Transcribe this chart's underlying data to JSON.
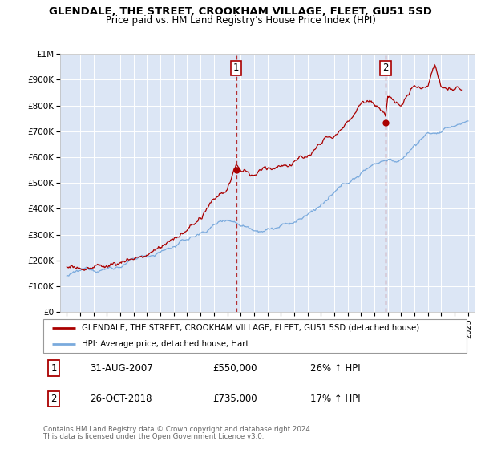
{
  "title": "GLENDALE, THE STREET, CROOKHAM VILLAGE, FLEET, GU51 5SD",
  "subtitle": "Price paid vs. HM Land Registry's House Price Index (HPI)",
  "background_color": "#dce6f5",
  "plot_bg_color": "#dce6f5",
  "legend_line1": "GLENDALE, THE STREET, CROOKHAM VILLAGE, FLEET, GU51 5SD (detached house)",
  "legend_line2": "HPI: Average price, detached house, Hart",
  "annotation1": {
    "label": "1",
    "date_x": 2007.67,
    "price": 550000,
    "pct": "26%",
    "date_str": "31-AUG-2007"
  },
  "annotation2": {
    "label": "2",
    "date_x": 2018.83,
    "price": 735000,
    "pct": "17%",
    "date_str": "26-OCT-2018"
  },
  "footer1": "Contains HM Land Registry data © Crown copyright and database right 2024.",
  "footer2": "This data is licensed under the Open Government Licence v3.0.",
  "red_color": "#aa0000",
  "blue_color": "#7aaadd",
  "ylim_min": 0,
  "ylim_max": 1000000,
  "xlim_min": 1994.5,
  "xlim_max": 2025.5,
  "yticks": [
    0,
    100000,
    200000,
    300000,
    400000,
    500000,
    600000,
    700000,
    800000,
    900000,
    1000000
  ],
  "ytick_labels": [
    "£0",
    "£100K",
    "£200K",
    "£300K",
    "£400K",
    "£500K",
    "£600K",
    "£700K",
    "£800K",
    "£900K",
    "£1M"
  ],
  "xticks": [
    1995,
    1996,
    1997,
    1998,
    1999,
    2000,
    2001,
    2002,
    2003,
    2004,
    2005,
    2006,
    2007,
    2008,
    2009,
    2010,
    2011,
    2012,
    2013,
    2014,
    2015,
    2016,
    2017,
    2018,
    2019,
    2020,
    2021,
    2022,
    2023,
    2024,
    2025
  ]
}
